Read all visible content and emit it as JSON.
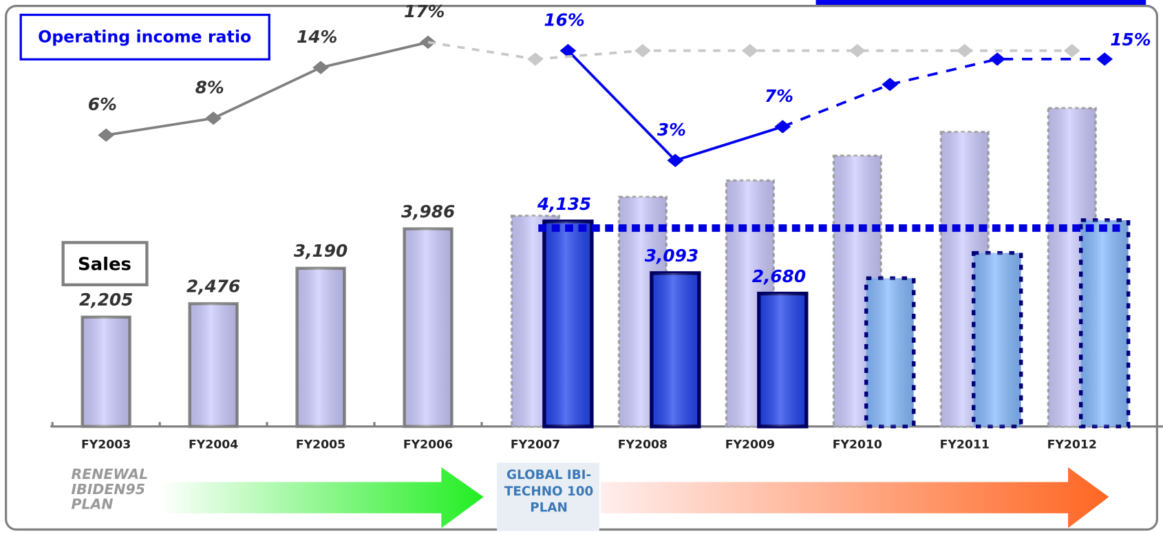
{
  "chart_data": {
    "type": "bar-line",
    "categories": [
      "FY2003",
      "FY2004",
      "FY2005",
      "FY2006",
      "FY2007",
      "FY2008",
      "FY2009",
      "FY2010",
      "FY2011",
      "FY2012"
    ],
    "ylim": [
      0,
      8600
    ],
    "y2lim": [
      -28.5,
      22
    ],
    "series": [
      {
        "name": "Sales",
        "color": "#ccccff",
        "style": "solid",
        "values": [
          2205,
          2476,
          3190,
          3986,
          null,
          null,
          null,
          null,
          null,
          null
        ],
        "value_labels": [
          "2,205",
          "2,476",
          "3,190",
          "3,986",
          null,
          null,
          null,
          null,
          null,
          null
        ]
      },
      {
        "color": "#2244ee",
        "style": "solid",
        "values": [
          null,
          null,
          null,
          null,
          4135,
          3093,
          2680,
          null,
          null,
          null
        ],
        "value_labels": [
          null,
          null,
          null,
          null,
          "4,135",
          "3,093",
          "2,680",
          null,
          null,
          null
        ]
      },
      {
        "color": "#ccccff",
        "style": "dashed",
        "values": [
          null,
          null,
          null,
          null,
          4250,
          4630,
          4960,
          5460,
          5940,
          6420
        ]
      },
      {
        "color": "#88bbff",
        "style": "dotted",
        "values": [
          null,
          null,
          null,
          null,
          null,
          null,
          null,
          2990,
          3500,
          4160
        ]
      },
      {
        "name": "Operating income ratio",
        "axis": "y2",
        "color": "#808080",
        "style": "solid",
        "values": [
          6,
          8,
          14,
          17,
          null,
          null,
          null,
          null,
          null,
          null
        ],
        "value_labels": [
          "6%",
          "8%",
          "14%",
          "17%",
          null,
          null,
          null,
          null,
          null,
          null
        ]
      },
      {
        "axis": "y2",
        "color": "#0000ee",
        "style": "solid",
        "values": [
          null,
          null,
          null,
          null,
          16,
          3,
          7,
          null,
          null,
          null
        ],
        "value_labels": [
          null,
          null,
          null,
          null,
          "16%",
          "3%",
          "7%",
          null,
          null,
          null
        ]
      },
      {
        "axis": "y2",
        "color": "#c8c8c8",
        "style": "dashed",
        "values": [
          null,
          null,
          null,
          null,
          15,
          16,
          16,
          16,
          16,
          16
        ]
      },
      {
        "axis": "y2",
        "color": "#0000ee",
        "style": "dotted",
        "values": [
          null,
          null,
          null,
          null,
          null,
          null,
          null,
          12,
          15,
          15
        ],
        "value_labels": [
          null,
          null,
          null,
          null,
          null,
          null,
          null,
          null,
          null,
          "15%"
        ]
      }
    ]
  },
  "plans": [
    {
      "label": "RENEWAL IBIDEN95 PLAN"
    },
    {
      "label": "GLOBAL IBI-TECHNO 100 PLAN"
    }
  ]
}
